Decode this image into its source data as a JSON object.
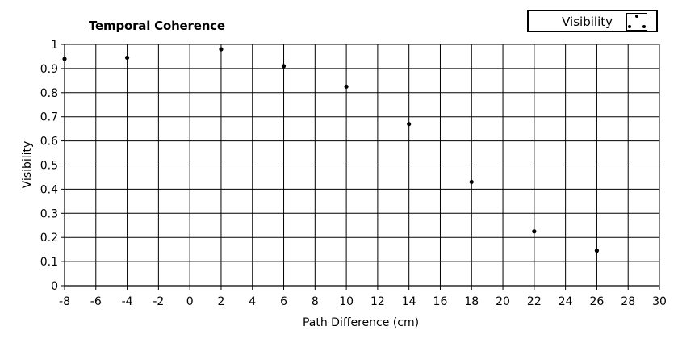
{
  "chart_data": {
    "type": "scatter",
    "title": "Temporal Coherence",
    "xlabel": "Path Difference (cm)",
    "ylabel": "Visibility",
    "xlim": [
      -8,
      30
    ],
    "ylim": [
      0,
      1
    ],
    "xticks": [
      -8,
      -6,
      -4,
      -2,
      0,
      2,
      4,
      6,
      8,
      10,
      12,
      14,
      16,
      18,
      20,
      22,
      24,
      26,
      28,
      30
    ],
    "yticks": [
      0,
      0.1,
      0.2,
      0.3,
      0.4,
      0.5,
      0.6,
      0.7,
      0.8,
      0.9,
      1
    ],
    "ytick_labels": [
      "0",
      "0.1",
      "0.2",
      "0.3",
      "0.4",
      "0.5",
      "0.6",
      "0.7",
      "0.8",
      "0.9",
      "1"
    ],
    "grid": true,
    "legend_position": "top-right",
    "series": [
      {
        "name": "Visibility",
        "color": "#000000",
        "x": [
          -8,
          -4,
          2,
          6,
          10,
          14,
          18,
          22,
          26
        ],
        "y": [
          0.94,
          0.945,
          0.98,
          0.91,
          0.825,
          0.67,
          0.43,
          0.225,
          0.145
        ]
      }
    ]
  }
}
